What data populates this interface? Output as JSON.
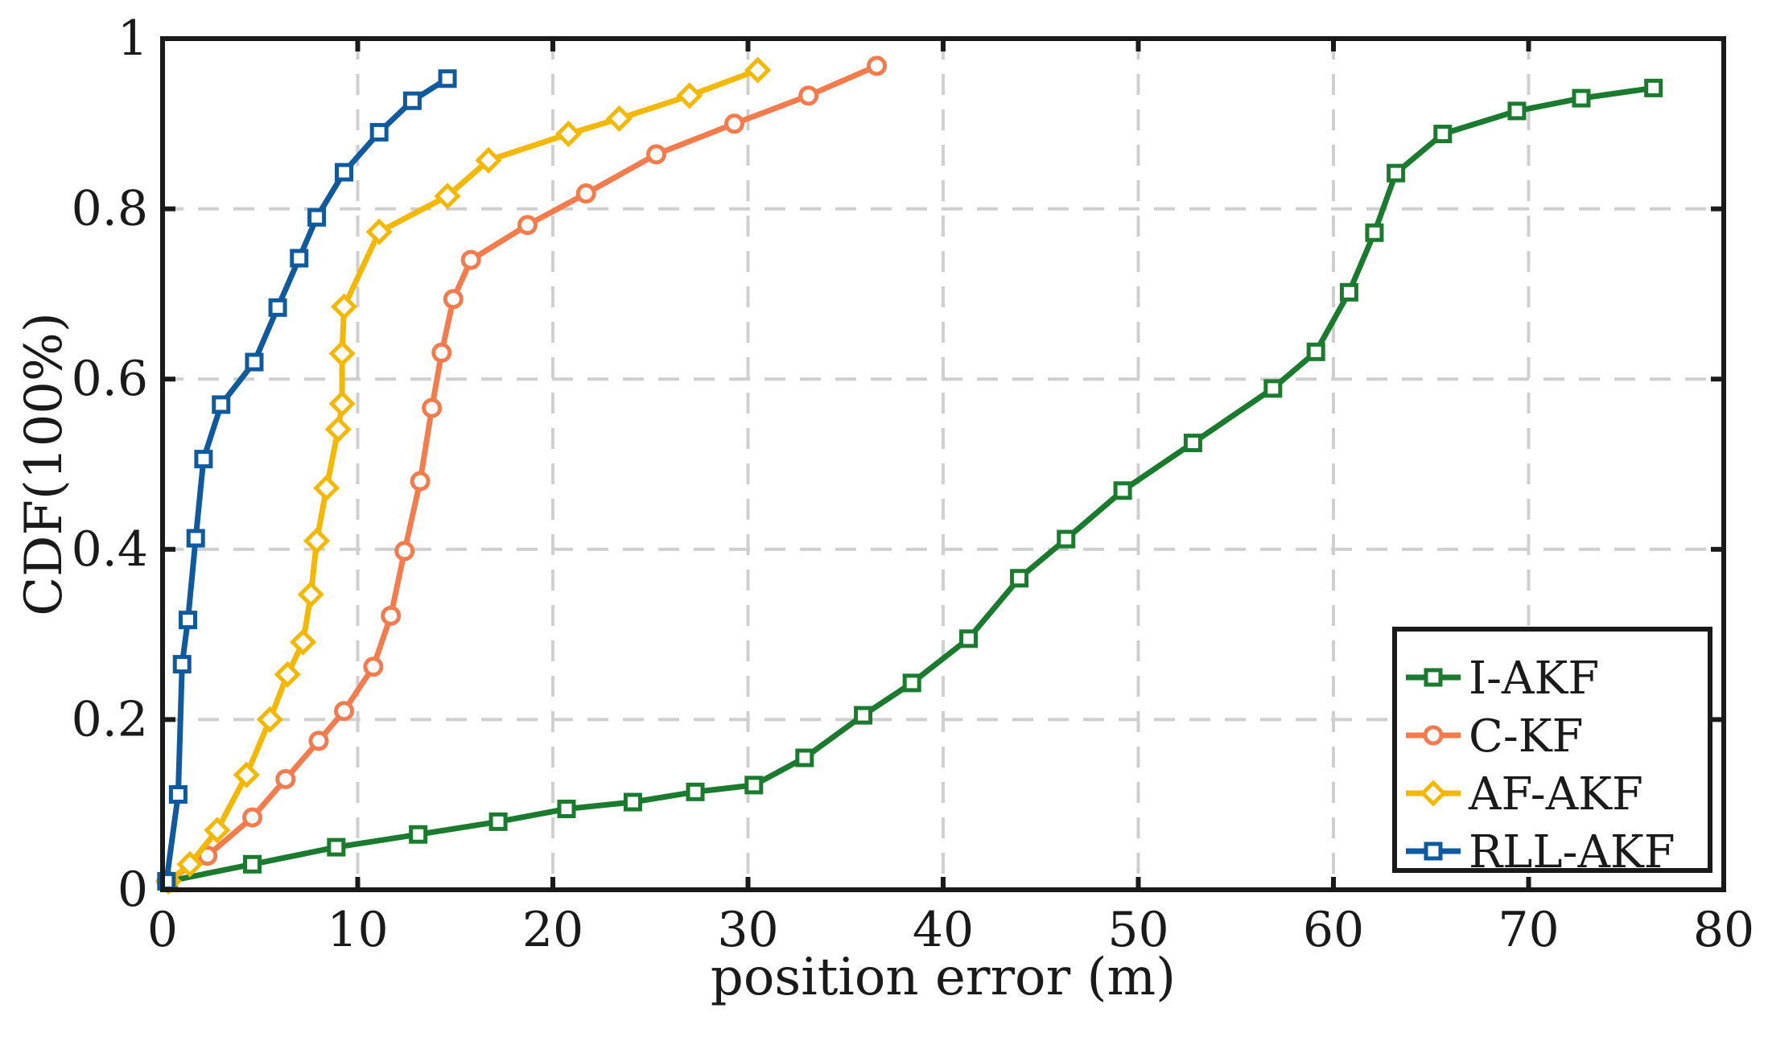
{
  "chart_data": {
    "type": "line",
    "title": "",
    "xlabel": "position error (m)",
    "ylabel": "CDF(100%)",
    "xlim": [
      0,
      80
    ],
    "ylim": [
      0,
      1
    ],
    "x_ticks": [
      "0",
      "10",
      "20",
      "30",
      "40",
      "50",
      "60",
      "70",
      "80"
    ],
    "y_ticks": [
      "0",
      "0.2",
      "0.4",
      "0.6",
      "0.8",
      "1"
    ],
    "grid": true,
    "legend_position": "bottom-right",
    "series": [
      {
        "name": "I-AKF",
        "color": "#1a7a2e",
        "marker": "square",
        "points": [
          [
            0.3,
            0.01
          ],
          [
            4.6,
            0.03
          ],
          [
            8.9,
            0.05
          ],
          [
            13.1,
            0.065
          ],
          [
            17.2,
            0.08
          ],
          [
            20.7,
            0.095
          ],
          [
            24.1,
            0.103
          ],
          [
            27.3,
            0.115
          ],
          [
            30.3,
            0.123
          ],
          [
            32.9,
            0.155
          ],
          [
            35.9,
            0.205
          ],
          [
            38.4,
            0.243
          ],
          [
            41.3,
            0.295
          ],
          [
            43.9,
            0.366
          ],
          [
            46.3,
            0.412
          ],
          [
            49.2,
            0.469
          ],
          [
            52.8,
            0.525
          ],
          [
            56.9,
            0.589
          ],
          [
            59.1,
            0.632
          ],
          [
            60.8,
            0.702
          ],
          [
            62.1,
            0.772
          ],
          [
            63.2,
            0.842
          ],
          [
            65.6,
            0.888
          ],
          [
            69.4,
            0.915
          ],
          [
            72.7,
            0.93
          ],
          [
            76.4,
            0.942
          ]
        ]
      },
      {
        "name": "C-KF",
        "color": "#f47c4c",
        "marker": "circle",
        "points": [
          [
            0.2,
            0.01
          ],
          [
            2.3,
            0.04
          ],
          [
            4.6,
            0.085
          ],
          [
            6.3,
            0.13
          ],
          [
            8.0,
            0.175
          ],
          [
            9.3,
            0.21
          ],
          [
            10.8,
            0.262
          ],
          [
            11.7,
            0.322
          ],
          [
            12.4,
            0.398
          ],
          [
            13.2,
            0.48
          ],
          [
            13.8,
            0.566
          ],
          [
            14.3,
            0.631
          ],
          [
            14.9,
            0.694
          ],
          [
            15.8,
            0.74
          ],
          [
            18.7,
            0.781
          ],
          [
            21.7,
            0.818
          ],
          [
            25.3,
            0.864
          ],
          [
            29.3,
            0.9
          ],
          [
            33.1,
            0.933
          ],
          [
            36.6,
            0.968
          ]
        ]
      },
      {
        "name": "AF-AKF",
        "color": "#f5b800",
        "marker": "diamond",
        "points": [
          [
            0.3,
            0.01
          ],
          [
            1.4,
            0.03
          ],
          [
            2.8,
            0.07
          ],
          [
            4.3,
            0.135
          ],
          [
            5.5,
            0.2
          ],
          [
            6.4,
            0.253
          ],
          [
            7.2,
            0.291
          ],
          [
            7.6,
            0.347
          ],
          [
            7.9,
            0.41
          ],
          [
            8.4,
            0.472
          ],
          [
            9.0,
            0.541
          ],
          [
            9.2,
            0.571
          ],
          [
            9.2,
            0.63
          ],
          [
            9.3,
            0.685
          ],
          [
            11.1,
            0.773
          ],
          [
            14.6,
            0.815
          ],
          [
            16.7,
            0.857
          ],
          [
            20.8,
            0.888
          ],
          [
            23.4,
            0.906
          ],
          [
            27.0,
            0.933
          ],
          [
            30.5,
            0.963
          ]
        ]
      },
      {
        "name": "RLL-AKF",
        "color": "#0f5a9e",
        "marker": "square",
        "points": [
          [
            0.2,
            0.01
          ],
          [
            0.8,
            0.112
          ],
          [
            1.0,
            0.265
          ],
          [
            1.3,
            0.317
          ],
          [
            1.7,
            0.413
          ],
          [
            2.1,
            0.506
          ],
          [
            3.0,
            0.57
          ],
          [
            4.7,
            0.62
          ],
          [
            5.9,
            0.684
          ],
          [
            7.0,
            0.742
          ],
          [
            7.9,
            0.79
          ],
          [
            9.3,
            0.843
          ],
          [
            11.1,
            0.89
          ],
          [
            12.8,
            0.927
          ],
          [
            14.6,
            0.953
          ]
        ]
      }
    ]
  }
}
